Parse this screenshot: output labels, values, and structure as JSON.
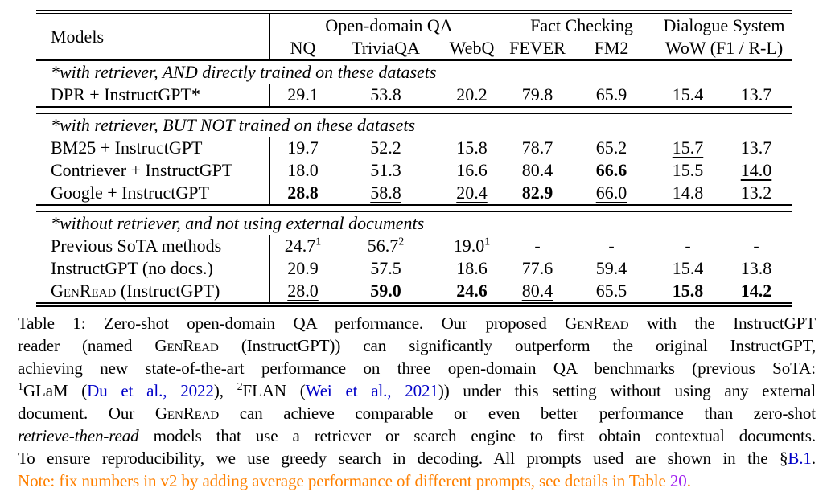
{
  "colors": {
    "link_blue": "#0000C8",
    "note_orange": "#FF8000",
    "ref_purple": "#A020F0",
    "text": "#000000",
    "background": "#FFFFFF"
  },
  "table": {
    "header": {
      "models": "Models",
      "groups": [
        {
          "label": "Open-domain QA"
        },
        {
          "label": "Fact Checking"
        },
        {
          "label": "Dialogue System"
        }
      ],
      "cols": [
        "NQ",
        "TriviaQA",
        "WebQ",
        "FEVER",
        "FM2"
      ],
      "wow_cols": "WoW (F1 / R-L)"
    },
    "sections": [
      {
        "note": "*with retriever, AND directly trained on these datasets",
        "rows": [
          {
            "model": [
              {
                "t": "DPR + InstructGPT*"
              }
            ],
            "values": [
              {
                "t": "29.1"
              },
              {
                "t": "53.8"
              },
              {
                "t": "20.2"
              },
              {
                "t": "79.8"
              },
              {
                "t": "65.9"
              },
              {
                "t": "15.4"
              },
              {
                "t": "13.7"
              }
            ]
          }
        ]
      },
      {
        "note": "*with retriever, BUT NOT trained on these datasets",
        "rows": [
          {
            "model": [
              {
                "t": "BM25 + InstructGPT"
              }
            ],
            "values": [
              {
                "t": "19.7"
              },
              {
                "t": "52.2"
              },
              {
                "t": "15.8"
              },
              {
                "t": "78.7"
              },
              {
                "t": "65.2"
              },
              {
                "t": "15.7",
                "u": true
              },
              {
                "t": "13.7"
              }
            ]
          },
          {
            "model": [
              {
                "t": "Contriever + InstructGPT"
              }
            ],
            "values": [
              {
                "t": "18.0"
              },
              {
                "t": "51.3"
              },
              {
                "t": "16.6"
              },
              {
                "t": "80.4"
              },
              {
                "t": "66.6",
                "b": true
              },
              {
                "t": "15.5"
              },
              {
                "t": "14.0",
                "u": true
              }
            ]
          },
          {
            "model": [
              {
                "t": "Google + InstructGPT"
              }
            ],
            "values": [
              {
                "t": "28.8",
                "b": true
              },
              {
                "t": "58.8",
                "u": true
              },
              {
                "t": "20.4",
                "u": true
              },
              {
                "t": "82.9",
                "b": true
              },
              {
                "t": "66.0",
                "u": true
              },
              {
                "t": "14.8"
              },
              {
                "t": "13.2"
              }
            ]
          }
        ]
      },
      {
        "note": "*without retriever, and not using external documents",
        "rows": [
          {
            "model": [
              {
                "t": "Previous SoTA methods"
              }
            ],
            "values": [
              {
                "t": "24.7",
                "sup": "1"
              },
              {
                "t": "56.7",
                "sup": "2"
              },
              {
                "t": "19.0",
                "sup": "1"
              },
              {
                "t": "-"
              },
              {
                "t": "-"
              },
              {
                "t": "-"
              },
              {
                "t": "-"
              }
            ]
          },
          {
            "model": [
              {
                "t": "InstructGPT (no docs.)"
              }
            ],
            "values": [
              {
                "t": "20.9"
              },
              {
                "t": "57.5"
              },
              {
                "t": "18.6"
              },
              {
                "t": "77.6"
              },
              {
                "t": "59.4"
              },
              {
                "t": "15.4"
              },
              {
                "t": "13.8"
              }
            ]
          },
          {
            "model": [
              {
                "t": "GenRead",
                "sc": true
              },
              {
                "t": " (InstructGPT)"
              }
            ],
            "values": [
              {
                "t": "28.0",
                "u": true
              },
              {
                "t": "59.0",
                "b": true
              },
              {
                "t": "24.6",
                "b": true
              },
              {
                "t": "80.4",
                "u": true
              },
              {
                "t": "65.5"
              },
              {
                "t": "15.8",
                "b": true
              },
              {
                "t": "14.2",
                "b": true
              }
            ]
          }
        ]
      }
    ]
  },
  "caption": {
    "lines": [
      [
        {
          "t": "Table 1: Zero-shot open-domain QA performance. Our proposed "
        },
        {
          "t": "GenRead",
          "sc": true
        },
        {
          "t": " with the InstructGPT"
        }
      ],
      [
        {
          "t": "reader (named "
        },
        {
          "t": "GenRead",
          "sc": true
        },
        {
          "t": " (InstructGPT)) can significantly outperform the original InstructGPT,"
        }
      ],
      [
        {
          "t": "achieving new state-of-the-art performance on three open-domain QA benchmarks (previous SoTA:"
        }
      ],
      [
        {
          "t": "1",
          "sup": true
        },
        {
          "t": "GLaM ("
        },
        {
          "t": "Du et al., 2022",
          "c": "blue",
          "link": true,
          "name": "citation-link-du-2022"
        },
        {
          "t": "), "
        },
        {
          "t": "2",
          "sup": true
        },
        {
          "t": "FLAN ("
        },
        {
          "t": "Wei et al., 2021",
          "c": "blue",
          "link": true,
          "name": "citation-link-wei-2021"
        },
        {
          "t": ")) under this setting without using any external"
        }
      ],
      [
        {
          "t": "document.  Our "
        },
        {
          "t": "GenRead",
          "sc": true
        },
        {
          "t": " can achieve comparable or even better performance than zero-shot"
        }
      ],
      [
        {
          "t": "retrieve-then-read",
          "i": true
        },
        {
          "t": " models that use a retriever or search engine to first obtain contextual documents."
        }
      ],
      [
        {
          "t": "To ensure reproducibility, we use greedy search in decoding. All prompts used are shown in the §"
        },
        {
          "t": "B.1",
          "c": "blue",
          "link": true,
          "name": "section-ref-link-b1"
        },
        {
          "t": "."
        }
      ],
      [
        {
          "t": "Note: fix numbers in v2 by adding average performance of different prompts, see details in Table ",
          "c": "orange"
        },
        {
          "t": "20",
          "c": "purple",
          "link": true,
          "name": "table-ref-link-20"
        },
        {
          "t": ".",
          "c": "orange"
        }
      ]
    ]
  }
}
